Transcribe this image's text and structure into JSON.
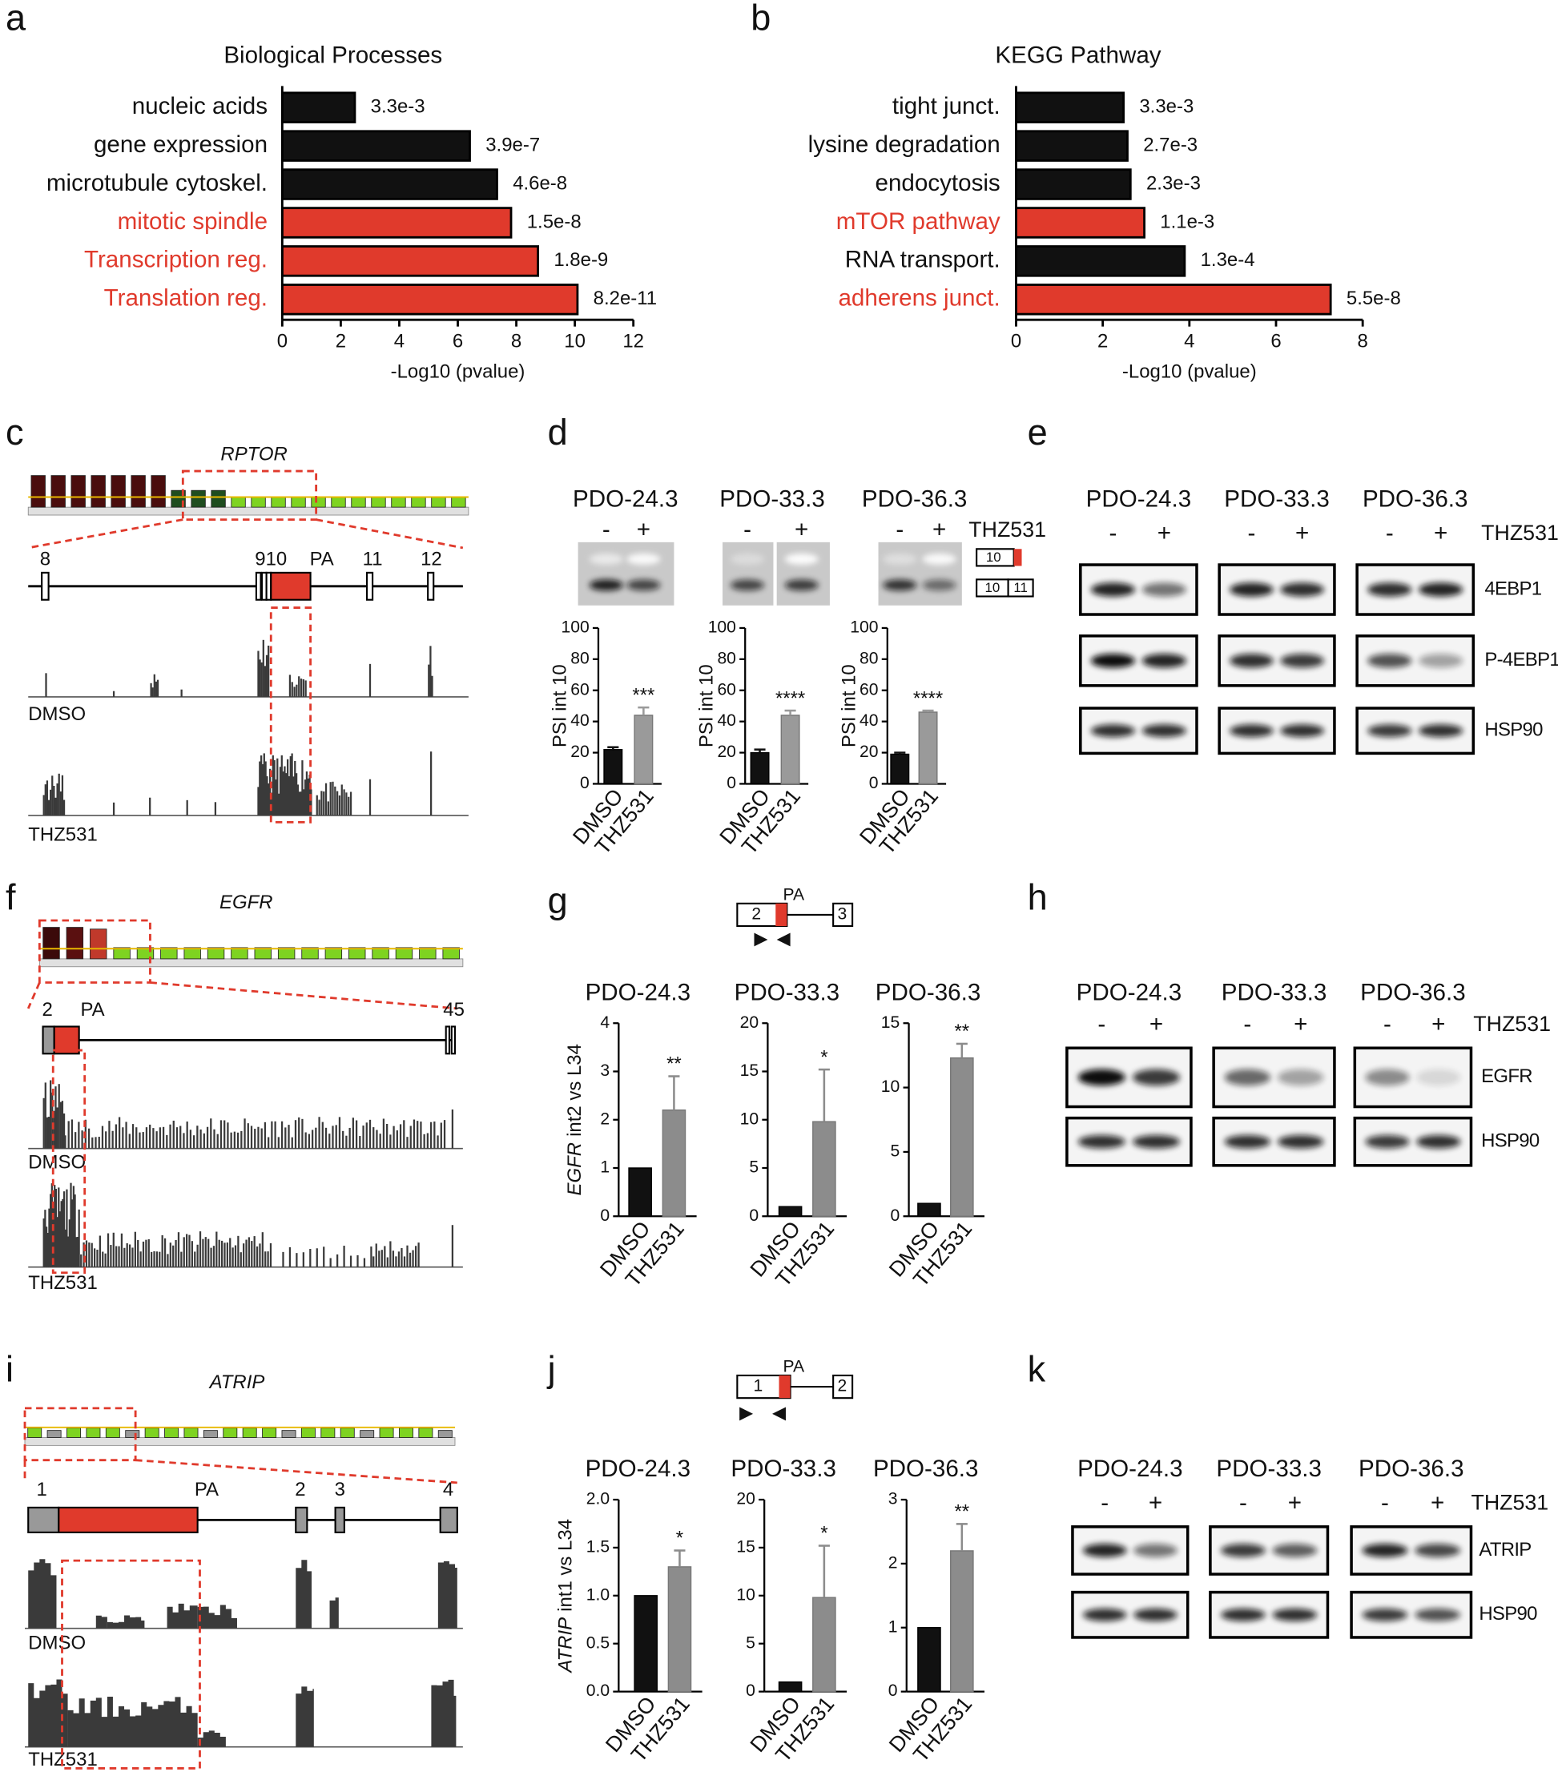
{
  "panel_letters": [
    "a",
    "b",
    "c",
    "d",
    "e",
    "f",
    "g",
    "h",
    "i",
    "j",
    "k"
  ],
  "chart_data": [
    {
      "type": "barh",
      "title": "Biological Processes",
      "categories": [
        "nucleic acids",
        "gene expression",
        "microtubule cytoskel.",
        "mitotic spindle",
        "Transcription reg.",
        "Translation reg."
      ],
      "values": [
        2.48,
        6.41,
        7.34,
        7.82,
        8.74,
        10.09
      ],
      "pvalues": [
        "3.3e-3",
        "3.9e-7",
        "4.6e-8",
        "1.5e-8",
        "1.8e-9",
        "8.2e-11"
      ],
      "colors": [
        "#111111",
        "#111111",
        "#111111",
        "#e03a2c",
        "#e03a2c",
        "#e03a2c"
      ],
      "xlim": [
        0,
        12
      ],
      "xticks": [
        0,
        2,
        4,
        6,
        8,
        10,
        12
      ],
      "xlabel": "-Log10 (pvalue)"
    },
    {
      "type": "barh",
      "title": "KEGG Pathway",
      "categories": [
        "tight junct.",
        "lysine degradation",
        "endocytosis",
        "mTOR pathway",
        "RNA transport.",
        "adherens junct."
      ],
      "values": [
        2.48,
        2.57,
        2.64,
        2.96,
        3.89,
        7.26
      ],
      "pvalues": [
        "3.3e-3",
        "2.7e-3",
        "2.3e-3",
        "1.1e-3",
        "1.3e-4",
        "5.5e-8"
      ],
      "colors": [
        "#111111",
        "#111111",
        "#111111",
        "#e03a2c",
        "#111111",
        "#e03a2c"
      ],
      "xlim": [
        0,
        8
      ],
      "xticks": [
        0,
        2,
        4,
        6,
        8
      ],
      "xlabel": "-Log10 (pvalue)"
    },
    {
      "type": "bar",
      "title": "PDO-24.3",
      "categories": [
        "DMSO",
        "THZ531"
      ],
      "values": [
        22,
        44
      ],
      "errors": [
        1.5,
        5
      ],
      "colors": [
        "#111111",
        "#9a9a9a"
      ],
      "significance": "***",
      "ylabel": "PSI int 10",
      "ylim": [
        0,
        100
      ],
      "yticks": [
        0,
        20,
        40,
        60,
        80,
        100
      ]
    },
    {
      "type": "bar",
      "title": "PDO-33.3",
      "categories": [
        "DMSO",
        "THZ531"
      ],
      "values": [
        20,
        44
      ],
      "errors": [
        2,
        3
      ],
      "colors": [
        "#111111",
        "#9a9a9a"
      ],
      "significance": "****",
      "ylabel": "PSI int 10",
      "ylim": [
        0,
        100
      ],
      "yticks": [
        0,
        20,
        40,
        60,
        80,
        100
      ]
    },
    {
      "type": "bar",
      "title": "PDO-36.3",
      "categories": [
        "DMSO",
        "THZ531"
      ],
      "values": [
        19,
        46
      ],
      "errors": [
        1,
        1
      ],
      "colors": [
        "#111111",
        "#9a9a9a"
      ],
      "significance": "****",
      "ylabel": "PSI int 10",
      "ylim": [
        0,
        100
      ],
      "yticks": [
        0,
        20,
        40,
        60,
        80,
        100
      ]
    },
    {
      "type": "bar",
      "title": "PDO-24.3",
      "categories": [
        "DMSO",
        "THZ531"
      ],
      "values": [
        1,
        2.2
      ],
      "errors": [
        null,
        0.7
      ],
      "colors": [
        "#111111",
        "#8c8c8c"
      ],
      "significance": "**",
      "ylabel_gene": "EGFR",
      "ylabel": "int2 vs L34",
      "ylim": [
        0,
        4
      ],
      "yticks": [
        0,
        1,
        2,
        3,
        4
      ]
    },
    {
      "type": "bar",
      "title": "PDO-33.3",
      "categories": [
        "DMSO",
        "THZ531"
      ],
      "values": [
        1,
        9.8
      ],
      "errors": [
        null,
        5.4
      ],
      "colors": [
        "#111111",
        "#8c8c8c"
      ],
      "significance": "*",
      "ylim": [
        0,
        20
      ],
      "yticks": [
        0,
        5,
        10,
        15,
        20
      ]
    },
    {
      "type": "bar",
      "title": "PDO-36.3",
      "categories": [
        "DMSO",
        "THZ531"
      ],
      "values": [
        1,
        12.3
      ],
      "errors": [
        null,
        1.1
      ],
      "colors": [
        "#111111",
        "#8c8c8c"
      ],
      "significance": "**",
      "ylim": [
        0,
        15
      ],
      "yticks": [
        0,
        5,
        10,
        15
      ]
    },
    {
      "type": "bar",
      "title": "PDO-24.3",
      "categories": [
        "DMSO",
        "THZ531"
      ],
      "values": [
        1,
        1.3
      ],
      "errors": [
        null,
        0.17
      ],
      "colors": [
        "#111111",
        "#8c8c8c"
      ],
      "significance": "*",
      "ylabel_gene": "ATRIP",
      "ylabel": "int1 vs L34",
      "ylim": [
        0,
        2
      ],
      "yticks": [
        {
          "value": 0,
          "label": "0.0"
        },
        0.5,
        {
          "value": 1,
          "label": "1.0"
        },
        1.5,
        {
          "value": 2,
          "label": "2.0"
        }
      ]
    },
    {
      "type": "bar",
      "title": "PDO-33.3",
      "categories": [
        "DMSO",
        "THZ531"
      ],
      "values": [
        1,
        9.8
      ],
      "errors": [
        null,
        5.4
      ],
      "colors": [
        "#111111",
        "#8c8c8c"
      ],
      "significance": "*",
      "ylim": [
        0,
        20
      ],
      "yticks": [
        0,
        5,
        10,
        15,
        20
      ]
    },
    {
      "type": "bar",
      "title": "PDO-36.3",
      "categories": [
        "DMSO",
        "THZ531"
      ],
      "values": [
        1,
        2.2
      ],
      "errors": [
        null,
        0.42
      ],
      "colors": [
        "#111111",
        "#8c8c8c"
      ],
      "significance": "**",
      "ylim": [
        0,
        3
      ],
      "yticks": [
        0,
        1,
        2,
        3
      ]
    }
  ],
  "gel": {
    "signs": [
      "-",
      "+"
    ],
    "treatment": "THZ531",
    "isoforms": [
      [
        "10"
      ],
      [
        "10",
        "11"
      ]
    ]
  },
  "tracks": [
    {
      "gene": "RPTOR",
      "exons": [
        "8",
        "910",
        "PA",
        "11",
        "12"
      ],
      "conditions": [
        "DMSO",
        "THZ531"
      ]
    },
    {
      "gene": "EGFR",
      "exons": [
        "2",
        "PA",
        "45"
      ],
      "conditions": [
        "DMSO",
        "THZ531"
      ]
    },
    {
      "gene": "ATRIP",
      "exons": [
        "1",
        "PA",
        "2",
        "3",
        "4"
      ],
      "conditions": [
        "DMSO",
        "THZ531"
      ]
    }
  ],
  "schemes": [
    {
      "labels": [
        "2",
        "PA",
        "3"
      ]
    },
    {
      "labels": [
        "1",
        "PA",
        "2"
      ]
    }
  ],
  "blots": [
    {
      "samples": [
        "PDO-24.3",
        "PDO-33.3",
        "PDO-36.3"
      ],
      "signs": [
        "-",
        "+"
      ],
      "treatment": "THZ531",
      "proteins": [
        "4EBP1",
        "P-4EBP1",
        "HSP90"
      ]
    },
    {
      "samples": [
        "PDO-24.3",
        "PDO-33.3",
        "PDO-36.3"
      ],
      "signs": [
        "-",
        "+"
      ],
      "treatment": "THZ531",
      "proteins": [
        "EGFR",
        "HSP90"
      ]
    },
    {
      "samples": [
        "PDO-24.3",
        "PDO-33.3",
        "PDO-36.3"
      ],
      "signs": [
        "-",
        "+"
      ],
      "treatment": "THZ531",
      "proteins": [
        "ATRIP",
        "HSP90"
      ]
    }
  ]
}
